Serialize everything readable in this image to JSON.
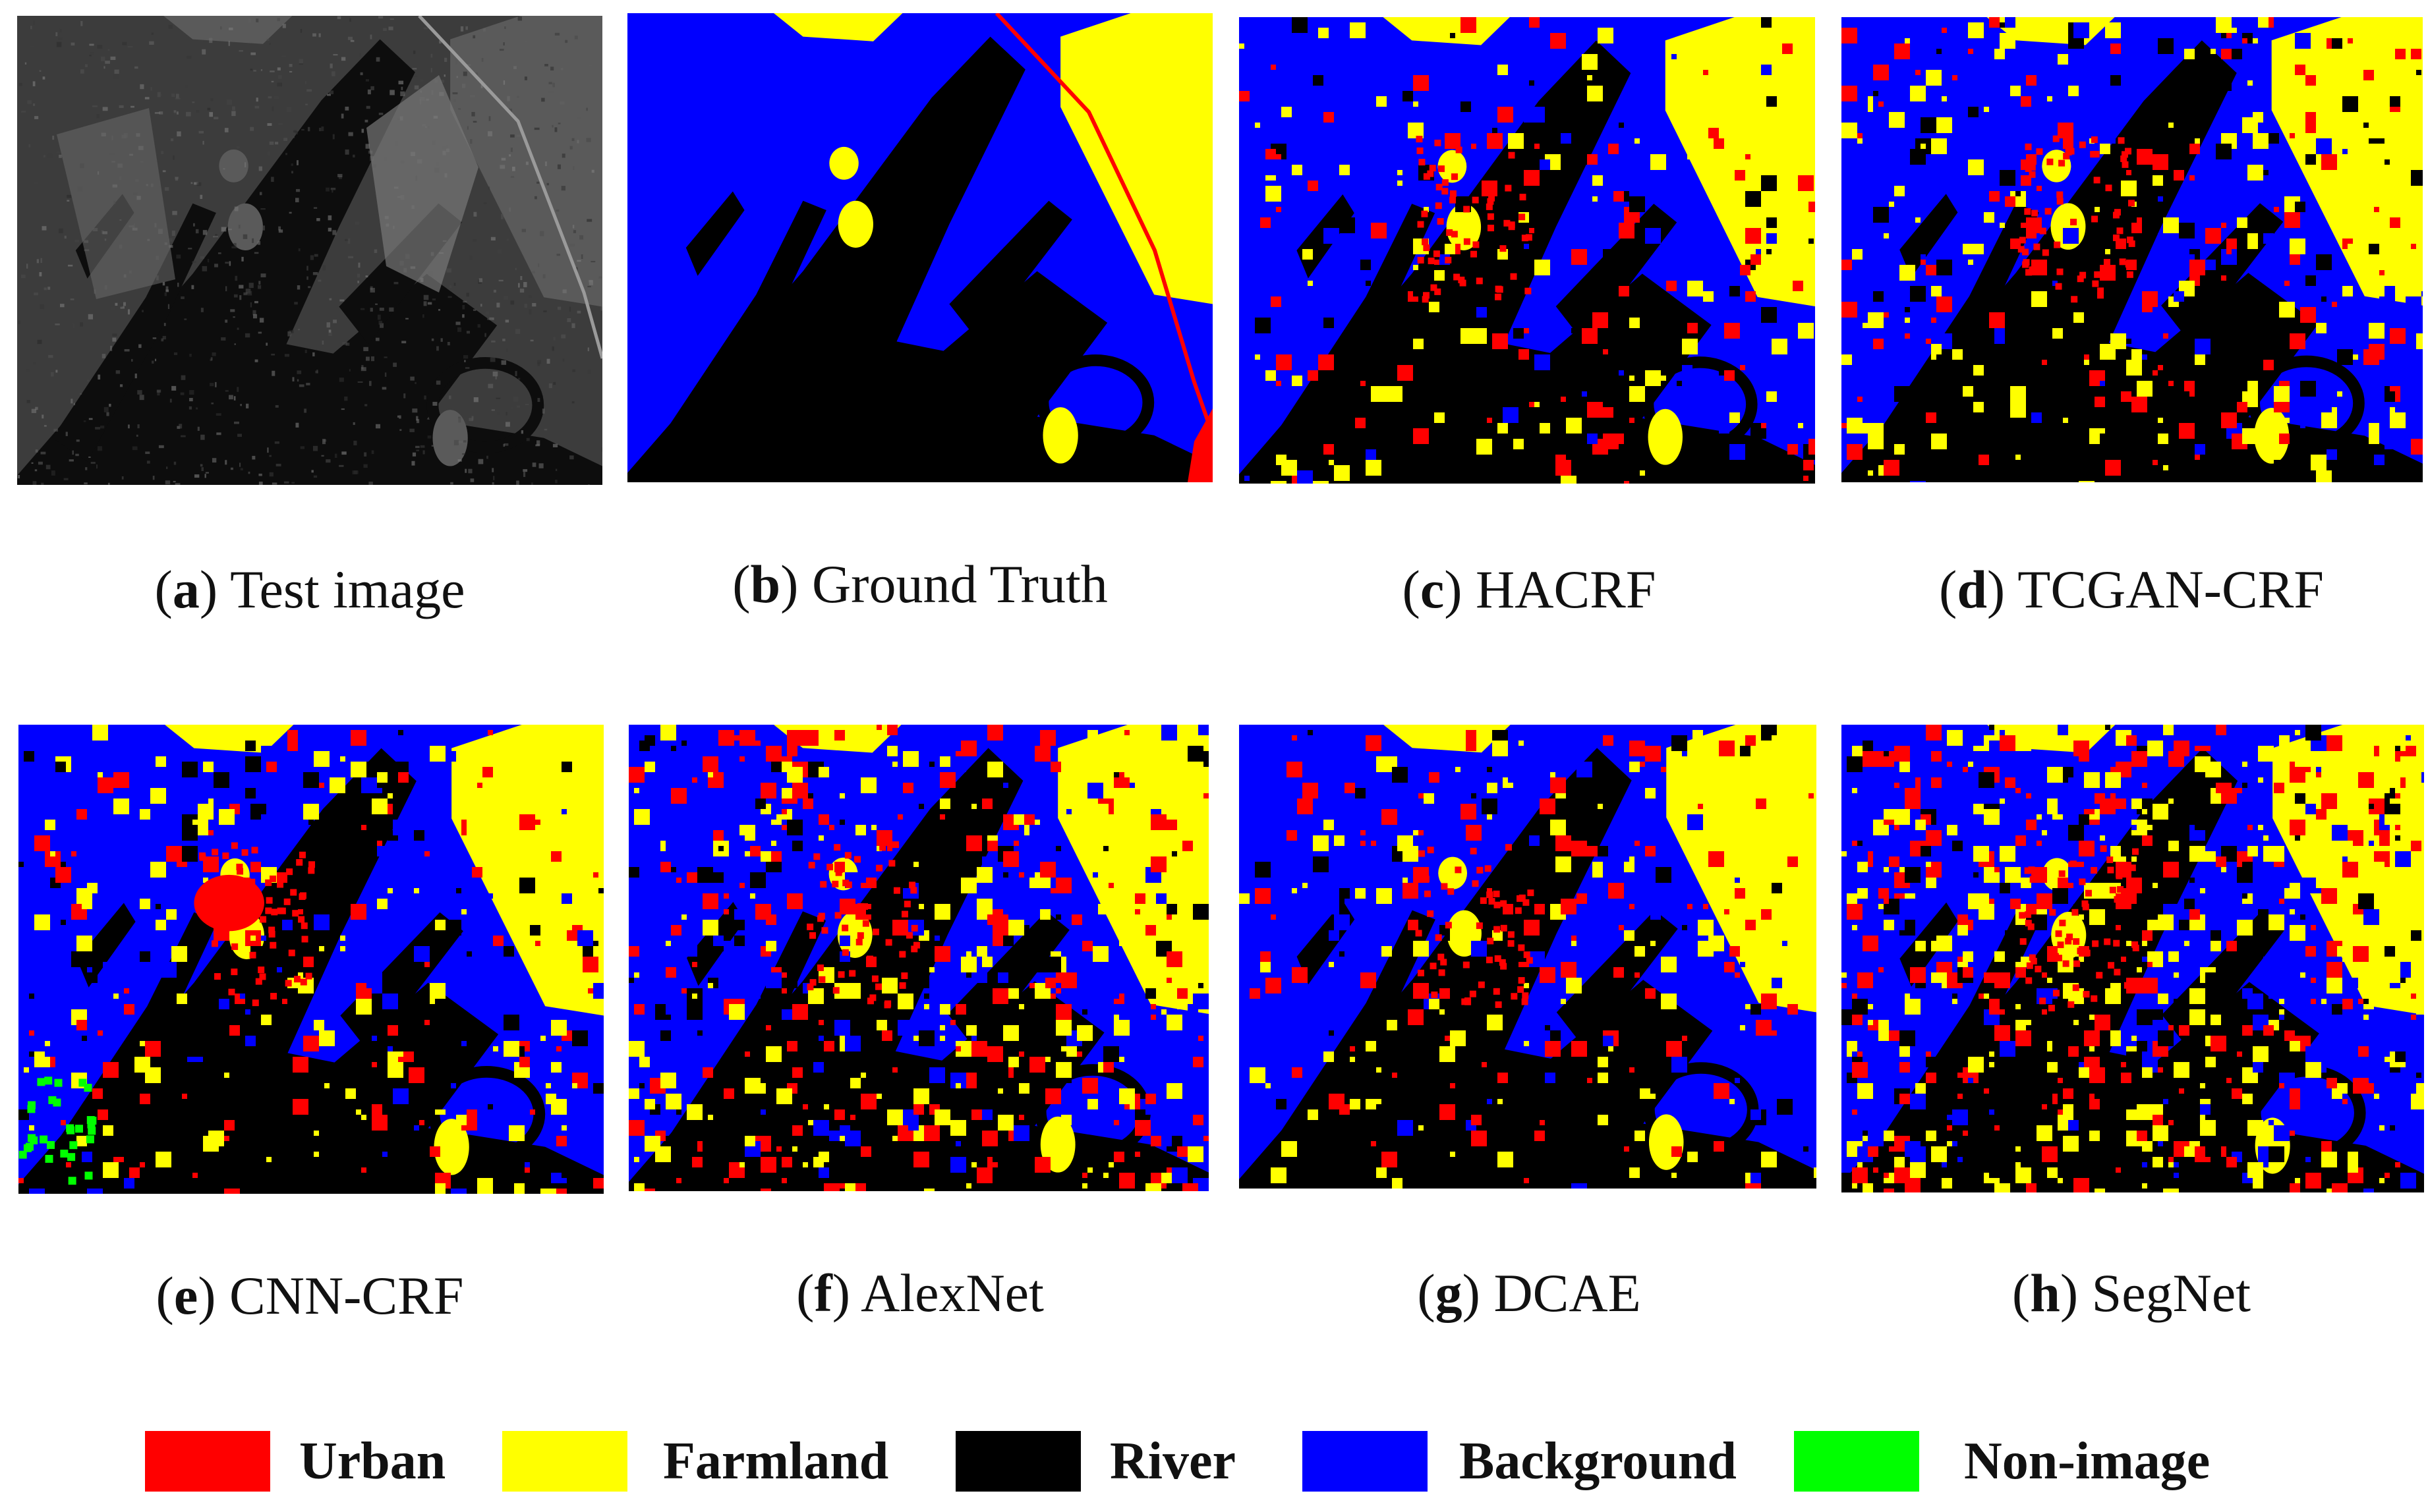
{
  "figure": {
    "panels": [
      {
        "id": "a",
        "name": "Test image",
        "kind": "sar"
      },
      {
        "id": "b",
        "name": "Ground Truth",
        "kind": "gt"
      },
      {
        "id": "c",
        "name": "HACRF",
        "kind": "seg",
        "seed": 11,
        "noise": 0.05
      },
      {
        "id": "d",
        "name": "TCGAN-CRF",
        "kind": "seg",
        "seed": 23,
        "noise": 0.08
      },
      {
        "id": "e",
        "name": "CNN-CRF",
        "kind": "seg",
        "seed": 37,
        "noise": 0.07
      },
      {
        "id": "f",
        "name": "AlexNet",
        "kind": "seg",
        "seed": 41,
        "noise": 0.12
      },
      {
        "id": "g",
        "name": "DCAE",
        "kind": "seg",
        "seed": 53,
        "noise": 0.06
      },
      {
        "id": "h",
        "name": "SegNet",
        "kind": "seg",
        "seed": 67,
        "noise": 0.16
      }
    ],
    "legend": [
      {
        "label": "Urban",
        "color": "#ff0000"
      },
      {
        "label": "Farmland",
        "color": "#ffff00"
      },
      {
        "label": "River",
        "color": "#000000"
      },
      {
        "label": "Background",
        "color": "#0000ff"
      },
      {
        "label": "Non-image",
        "color": "#00ff00"
      }
    ]
  }
}
